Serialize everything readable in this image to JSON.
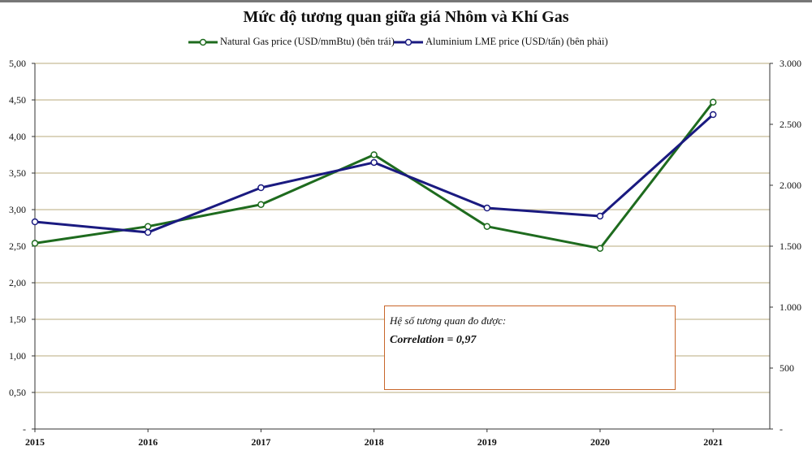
{
  "chart_data": {
    "type": "line",
    "title": "Mức độ tương quan giữa giá Nhôm và Khí Gas",
    "categories": [
      "2015",
      "2016",
      "2017",
      "2018",
      "2019",
      "2020",
      "2021"
    ],
    "series": [
      {
        "name": "Natural Gas price (USD/mmBtu) (bên trái)",
        "axis": "left",
        "color": "#1e6b1e",
        "values": [
          2.54,
          2.77,
          3.07,
          3.75,
          2.77,
          2.47,
          4.47
        ]
      },
      {
        "name": "Aluminium LME price (USD/tấn) (bên phải)",
        "axis": "right",
        "color": "#1a1a80",
        "values": [
          1700,
          1613,
          1980,
          2187,
          1813,
          1747,
          2580
        ]
      }
    ],
    "y_left": {
      "range": [
        0,
        5
      ],
      "ticks": [
        "-",
        "0,50",
        "1,00",
        "1,50",
        "2,00",
        "2,50",
        "3,00",
        "3,50",
        "4,00",
        "4,50",
        "5,00"
      ]
    },
    "y_right": {
      "range": [
        0,
        3000
      ],
      "ticks": [
        "-",
        "500",
        "1.000",
        "1.500",
        "2.000",
        "2.500",
        "3.000"
      ]
    },
    "grid": true,
    "legend": "top",
    "annotation": {
      "line1": "Hệ số tương quan đo được:",
      "line2": "Correlation = 0,97"
    },
    "grid_color": "#c8bc96"
  }
}
